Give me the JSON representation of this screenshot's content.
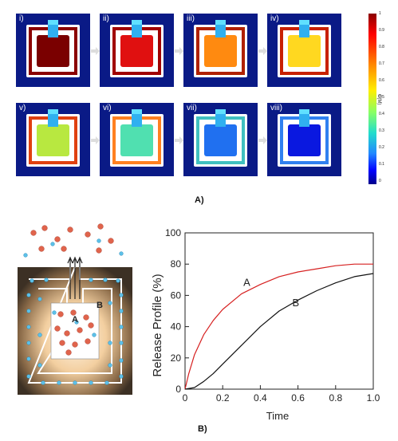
{
  "figure_a": {
    "panels": [
      {
        "label": "i)",
        "core_color": "#7a0000",
        "ring_color": "#8b0000"
      },
      {
        "label": "ii)",
        "core_color": "#e01010",
        "ring_color": "#a00000"
      },
      {
        "label": "iii)",
        "core_color": "#ff8a10",
        "ring_color": "#b02000"
      },
      {
        "label": "iv)",
        "core_color": "#ffd820",
        "ring_color": "#c82000"
      },
      {
        "label": "v)",
        "core_color": "#b8e840",
        "ring_color": "#e04010"
      },
      {
        "label": "vi)",
        "core_color": "#50e0b0",
        "ring_color": "#ff8020"
      },
      {
        "label": "vii)",
        "core_color": "#2070f0",
        "ring_color": "#40c0c0"
      },
      {
        "label": "viii)",
        "core_color": "#0a18e0",
        "ring_color": "#3080f0"
      }
    ],
    "colorbar": {
      "label": "C(M)",
      "ticks": [
        "1",
        "0.9",
        "0.8",
        "0.7",
        "0.6",
        "0.5",
        "0.4",
        "0.3",
        "0.2",
        "0.1",
        "0"
      ]
    },
    "caption": "A)"
  },
  "figure_b": {
    "schematic": {
      "label_a": "A",
      "label_b": "B"
    },
    "caption": "B)"
  },
  "chart_data": {
    "type": "line",
    "xlabel": "Time",
    "ylabel": "Release Profile (%)",
    "xlim": [
      0,
      1.0
    ],
    "ylim": [
      0,
      100
    ],
    "x_ticks": [
      "0",
      "0.2",
      "0.4",
      "0.6",
      "0.8",
      "1.0"
    ],
    "y_ticks": [
      "0",
      "20",
      "40",
      "60",
      "80",
      "100"
    ],
    "grid": false,
    "series": [
      {
        "name": "A",
        "color": "#d62020",
        "x": [
          0,
          0.02,
          0.05,
          0.1,
          0.15,
          0.2,
          0.3,
          0.4,
          0.5,
          0.6,
          0.7,
          0.8,
          0.9,
          1.0
        ],
        "y": [
          0,
          10,
          22,
          35,
          44,
          51,
          61,
          67,
          72,
          75,
          77,
          79,
          80,
          80
        ]
      },
      {
        "name": "B",
        "color": "#111111",
        "x": [
          0,
          0.05,
          0.1,
          0.15,
          0.2,
          0.3,
          0.4,
          0.5,
          0.6,
          0.7,
          0.8,
          0.9,
          1.0
        ],
        "y": [
          0,
          1,
          5,
          10,
          16,
          28,
          40,
          50,
          57,
          63,
          68,
          72,
          74
        ]
      }
    ],
    "annotations": [
      {
        "text": "A",
        "x": 0.31,
        "y": 66
      },
      {
        "text": "B",
        "x": 0.57,
        "y": 53
      }
    ]
  }
}
